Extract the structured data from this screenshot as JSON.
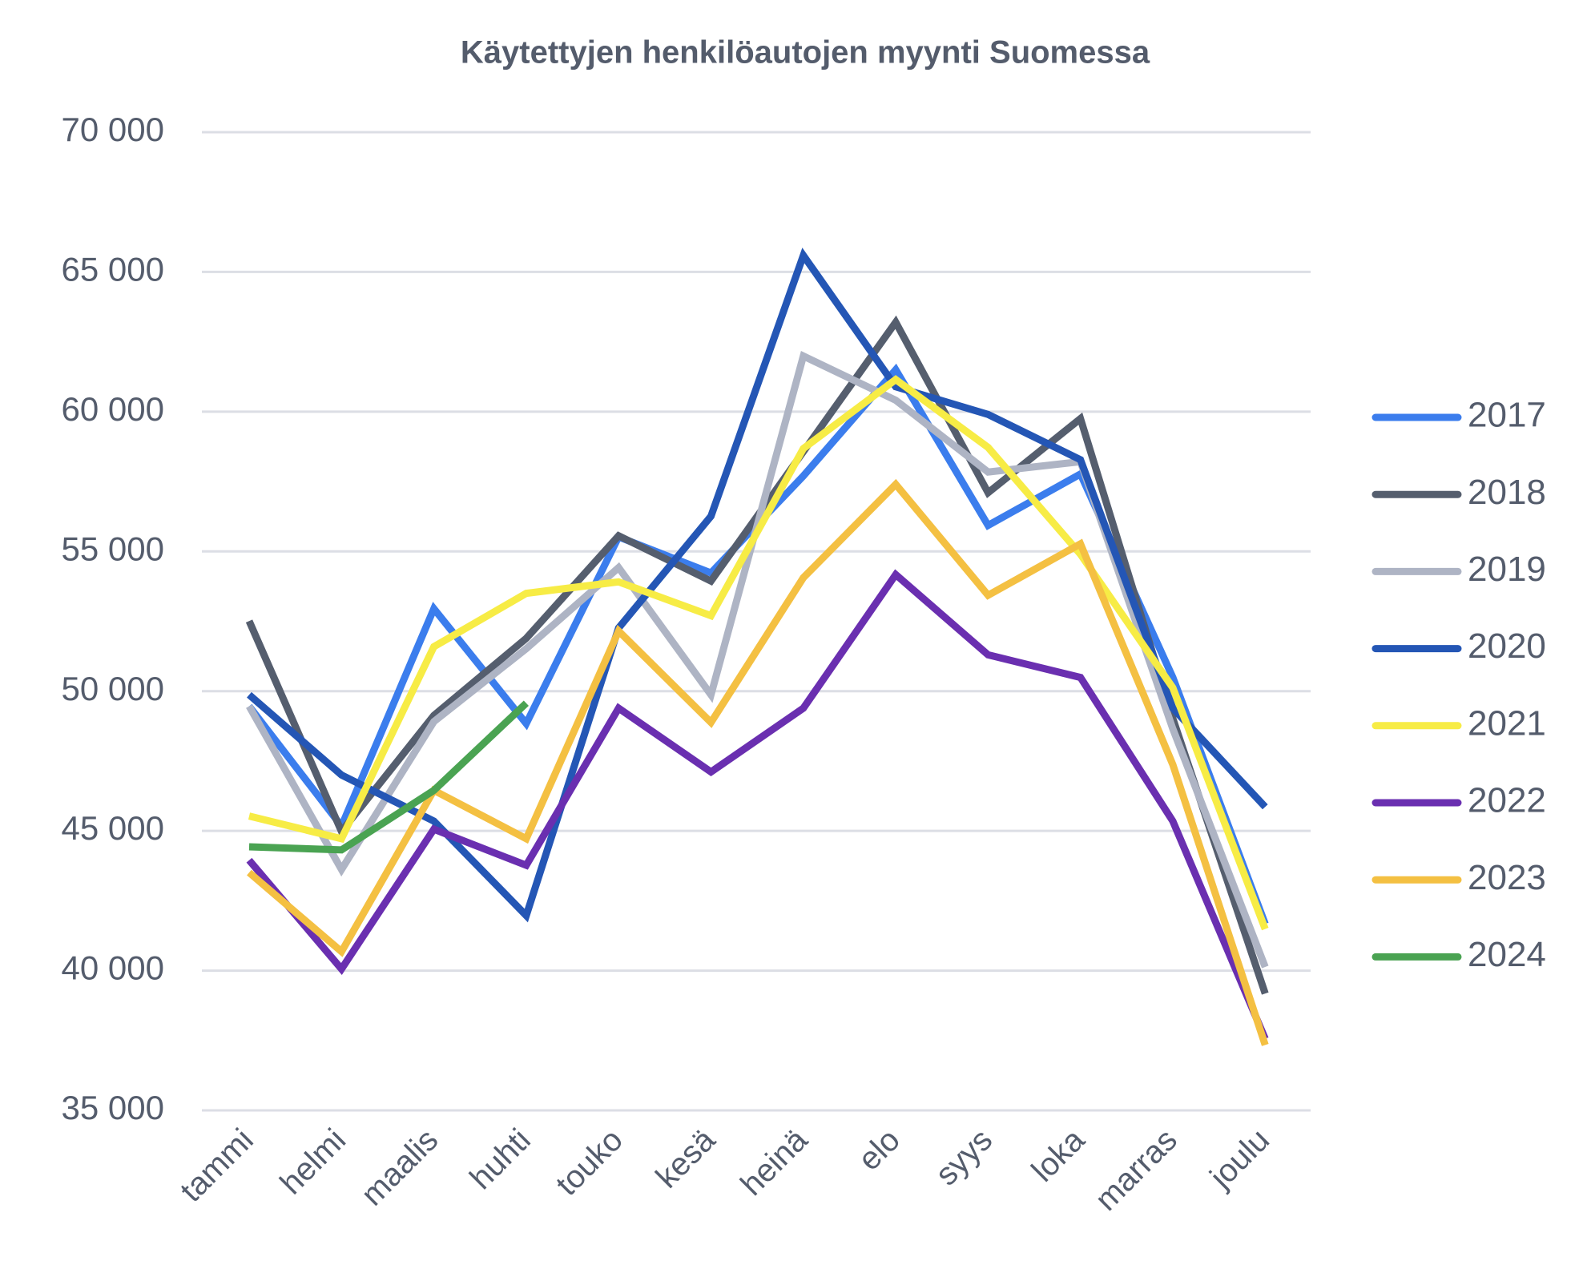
{
  "chart_data": {
    "type": "line",
    "title": "Käytettyjen henkilöautojen  myynti Suomessa",
    "categories": [
      "tammi",
      "helmi",
      "maalis",
      "huhti",
      "touko",
      "kesä",
      "heinä",
      "elo",
      "syys",
      "loka",
      "marras",
      "joulu"
    ],
    "ylim": [
      35000,
      70000
    ],
    "yticks": [
      {
        "value": 35000,
        "label": "35 000"
      },
      {
        "value": 40000,
        "label": "40 000"
      },
      {
        "value": 45000,
        "label": "45 000"
      },
      {
        "value": 50000,
        "label": "50 000"
      },
      {
        "value": 55000,
        "label": "55 000"
      },
      {
        "value": 60000,
        "label": "60 000"
      },
      {
        "value": 65000,
        "label": "65 000"
      },
      {
        "value": 70000,
        "label": "70 000"
      }
    ],
    "grid": true,
    "legend": "right",
    "series": [
      {
        "name": "2017",
        "color": "#3b7ded",
        "values": [
          49460,
          45170,
          52950,
          48840,
          55520,
          54230,
          57700,
          61500,
          55930,
          57770,
          50490,
          41670
        ]
      },
      {
        "name": "2018",
        "color": "#555e6e",
        "values": [
          52510,
          44980,
          49130,
          51890,
          55560,
          53940,
          58570,
          63200,
          57100,
          59750,
          49020,
          39180
        ]
      },
      {
        "name": "2019",
        "color": "#aeb4c4",
        "values": [
          49460,
          43620,
          48910,
          51520,
          54420,
          49870,
          61990,
          60410,
          57840,
          58210,
          48650,
          40130
        ]
      },
      {
        "name": "2020",
        "color": "#2456b5",
        "values": [
          49870,
          47000,
          45350,
          41970,
          52260,
          56260,
          65590,
          60890,
          59900,
          58280,
          49390,
          45860
        ]
      },
      {
        "name": "2021",
        "color": "#f7ec45",
        "values": [
          45530,
          44720,
          51590,
          53500,
          53910,
          52700,
          58680,
          61150,
          58720,
          54900,
          50120,
          41490
        ]
      },
      {
        "name": "2022",
        "color": "#6a2fb0",
        "values": [
          43950,
          40060,
          45060,
          43770,
          49390,
          47110,
          49390,
          54170,
          51300,
          50490,
          45350,
          37560
        ]
      },
      {
        "name": "2023",
        "color": "#f4c042",
        "values": [
          43510,
          40680,
          46450,
          44720,
          52150,
          48880,
          54060,
          57400,
          53430,
          55270,
          47370,
          37340
        ]
      },
      {
        "name": "2024",
        "color": "#4aa352",
        "values": [
          44430,
          44320,
          46450,
          49570,
          null,
          null,
          null,
          null,
          null,
          null,
          null,
          null
        ]
      }
    ]
  }
}
